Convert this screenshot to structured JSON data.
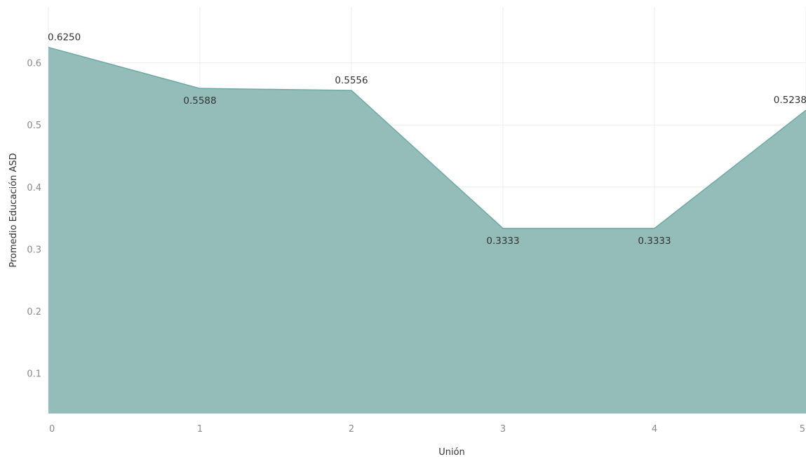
{
  "chart_data": {
    "type": "area",
    "xlabel": "Unión",
    "ylabel": "Promedio Educación ASD",
    "x": [
      0,
      1,
      2,
      3,
      4,
      5
    ],
    "values": [
      0.625,
      0.5588,
      0.5556,
      0.3333,
      0.3333,
      0.5238
    ],
    "data_labels": [
      "0.6250",
      "0.5588",
      "0.5556",
      "0.3333",
      "0.3333",
      "0.5238"
    ],
    "x_ticks": [
      "0",
      "1",
      "2",
      "3",
      "4",
      "5"
    ],
    "y_ticks": [
      "0.1",
      "0.2",
      "0.3",
      "0.4",
      "0.5",
      "0.6"
    ],
    "y_tick_values": [
      0.1,
      0.2,
      0.3,
      0.4,
      0.5,
      0.6
    ],
    "xlim": [
      0,
      5
    ],
    "ylim": [
      0.035,
      0.69
    ],
    "grid": true,
    "legend": "none",
    "colors": {
      "fill": "#94bdba",
      "line": "#6fa9a5"
    }
  }
}
